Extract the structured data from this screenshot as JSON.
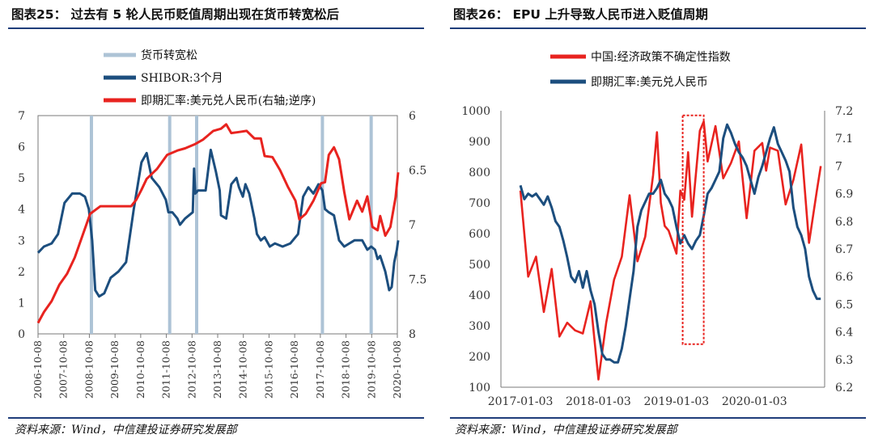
{
  "left": {
    "title": "图表25： 过去有 5 轮人民币贬值周期出现在货币转宽松后",
    "source": "资料来源：Wind，中信建投证券研究发展部",
    "legend": [
      "货币转宽松",
      "SHIBOR:3个月",
      "即期汇率:美元兑人民币(右轴;逆序)"
    ]
  },
  "right": {
    "title": "图表26： EPU 上升导致人民币进入贬值周期",
    "source": "资料来源：Wind，中信建投证券研究发展部",
    "legend": [
      "中国:经济政策不确定性指数",
      "即期汇率:美元兑人民币"
    ]
  },
  "colors": {
    "red": "#e8231f",
    "blue": "#1c4e7e",
    "band": "#adc3d6",
    "box": "#e8231f"
  },
  "chart_data": [
    {
      "type": "line",
      "title": "",
      "x_ticks": [
        "2006-10-08",
        "2007-10-08",
        "2008-10-08",
        "2009-10-08",
        "2010-10-08",
        "2011-10-08",
        "2012-10-08",
        "2013-10-08",
        "2014-10-08",
        "2015-10-08",
        "2016-10-08",
        "2017-10-08",
        "2018-10-08",
        "2019-10-08",
        "2020-10-08"
      ],
      "y_left": {
        "range": [
          0,
          7
        ],
        "ticks": [
          0,
          1,
          2,
          3,
          4,
          5,
          6,
          7
        ]
      },
      "y_right": {
        "range": [
          6,
          8
        ],
        "inverted": true,
        "ticks": [
          "6",
          "6.5",
          "7",
          "7.5",
          "8"
        ]
      },
      "easing_years": [
        2008.85,
        2011.9,
        2012.95,
        2017.85,
        2019.75
      ],
      "series": [
        {
          "name": "SHIBOR:3个月",
          "axis": "left",
          "x": [
            2006.77,
            2007.0,
            2007.3,
            2007.55,
            2007.8,
            2008.1,
            2008.4,
            2008.6,
            2008.75,
            2008.88,
            2009.0,
            2009.15,
            2009.35,
            2009.6,
            2009.9,
            2010.2,
            2010.5,
            2010.8,
            2011.0,
            2011.2,
            2011.5,
            2011.75,
            2011.85,
            2012.0,
            2012.2,
            2012.3,
            2012.5,
            2012.8,
            2012.85,
            2012.9,
            2013.0,
            2013.3,
            2013.45,
            2013.5,
            2013.7,
            2013.85,
            2013.9,
            2014.1,
            2014.3,
            2014.5,
            2014.6,
            2014.75,
            2014.85,
            2015.0,
            2015.2,
            2015.3,
            2015.45,
            2015.6,
            2015.8,
            2016.0,
            2016.3,
            2016.6,
            2016.9,
            2017.1,
            2017.3,
            2017.5,
            2017.7,
            2017.85,
            2017.95,
            2018.1,
            2018.3,
            2018.5,
            2018.7,
            2018.9,
            2019.1,
            2019.4,
            2019.6,
            2019.75,
            2019.9,
            2020.0,
            2020.1,
            2020.3,
            2020.45,
            2020.55,
            2020.65,
            2020.75,
            2020.8
          ],
          "values": [
            2.6,
            2.8,
            2.9,
            3.2,
            4.2,
            4.5,
            4.5,
            4.4,
            4.0,
            3.0,
            1.4,
            1.2,
            1.3,
            1.8,
            2.0,
            2.3,
            4.0,
            5.5,
            5.8,
            5.0,
            4.7,
            4.3,
            3.9,
            3.9,
            3.7,
            3.5,
            3.7,
            3.9,
            5.3,
            4.5,
            4.6,
            4.6,
            5.6,
            5.9,
            5.2,
            4.6,
            3.8,
            3.7,
            4.8,
            5.0,
            4.7,
            4.4,
            4.8,
            4.5,
            3.7,
            3.2,
            3.0,
            3.1,
            2.8,
            2.9,
            2.8,
            2.9,
            3.2,
            4.4,
            4.7,
            4.5,
            4.8,
            4.6,
            4.0,
            3.9,
            3.8,
            3.0,
            2.8,
            2.9,
            3.0,
            3.0,
            2.7,
            2.8,
            2.7,
            2.4,
            2.5,
            2.0,
            1.4,
            1.5,
            2.3,
            2.7,
            3.0
          ]
        },
        {
          "name": "即期汇率:美元兑人民币(右轴;逆序)",
          "axis": "right",
          "x": [
            2006.77,
            2007.0,
            2007.3,
            2007.6,
            2007.9,
            2008.2,
            2008.5,
            2008.8,
            2009.2,
            2009.6,
            2010.0,
            2010.4,
            2010.6,
            2010.8,
            2011.0,
            2011.4,
            2011.8,
            2012.2,
            2012.5,
            2012.9,
            2013.2,
            2013.6,
            2013.9,
            2014.1,
            2014.3,
            2014.6,
            2014.9,
            2015.2,
            2015.45,
            2015.6,
            2015.9,
            2016.2,
            2016.5,
            2016.8,
            2016.95,
            2017.2,
            2017.5,
            2017.8,
            2017.95,
            2018.1,
            2018.3,
            2018.5,
            2018.7,
            2018.9,
            2019.2,
            2019.4,
            2019.6,
            2019.8,
            2020.0,
            2020.1,
            2020.3,
            2020.5,
            2020.7,
            2020.8
          ],
          "values": [
            7.9,
            7.8,
            7.7,
            7.55,
            7.45,
            7.3,
            7.1,
            6.9,
            6.83,
            6.83,
            6.83,
            6.83,
            6.77,
            6.68,
            6.58,
            6.49,
            6.36,
            6.32,
            6.3,
            6.26,
            6.22,
            6.14,
            6.12,
            6.08,
            6.16,
            6.15,
            6.14,
            6.21,
            6.21,
            6.37,
            6.38,
            6.5,
            6.65,
            6.78,
            6.95,
            6.9,
            6.78,
            6.62,
            6.61,
            6.36,
            6.29,
            6.4,
            6.7,
            6.95,
            6.78,
            6.88,
            6.74,
            7.02,
            7.05,
            6.92,
            7.1,
            7.02,
            6.75,
            6.52
          ]
        }
      ]
    },
    {
      "type": "line",
      "title": "",
      "x_ticks": [
        "2017-01-03",
        "2018-01-03",
        "2019-01-03",
        "2020-01-03"
      ],
      "y_left": {
        "range": [
          100,
          1000
        ],
        "ticks": [
          100,
          200,
          300,
          400,
          500,
          600,
          700,
          800,
          900,
          1000
        ]
      },
      "y_right": {
        "range": [
          6.2,
          7.2
        ],
        "ticks": [
          "6.2",
          "6.3",
          "6.4",
          "6.5",
          "6.6",
          "6.7",
          "6.8",
          "6.9",
          "7",
          "7.1",
          "7.2"
        ]
      },
      "highlight": {
        "x_range": [
          2019.08,
          2019.35
        ],
        "y_range": [
          240,
          985
        ]
      },
      "series": [
        {
          "name": "中国:经济政策不确定性指数",
          "axis": "left",
          "x": [
            2017.0,
            2017.1,
            2017.2,
            2017.3,
            2017.4,
            2017.5,
            2017.6,
            2017.7,
            2017.8,
            2017.9,
            2018.0,
            2018.1,
            2018.2,
            2018.3,
            2018.4,
            2018.5,
            2018.6,
            2018.7,
            2018.75,
            2018.8,
            2018.85,
            2018.9,
            2019.0,
            2019.05,
            2019.1,
            2019.15,
            2019.2,
            2019.3,
            2019.35,
            2019.4,
            2019.5,
            2019.6,
            2019.7,
            2019.8,
            2019.9,
            2020.0,
            2020.1,
            2020.15,
            2020.2,
            2020.3,
            2020.4,
            2020.5,
            2020.6,
            2020.7,
            2020.8,
            2020.85
          ],
          "values": [
            740,
            460,
            525,
            345,
            485,
            265,
            310,
            285,
            275,
            380,
            125,
            310,
            450,
            525,
            725,
            510,
            590,
            790,
            930,
            700,
            625,
            610,
            535,
            740,
            710,
            865,
            655,
            935,
            965,
            835,
            950,
            780,
            830,
            900,
            650,
            870,
            895,
            805,
            880,
            870,
            695,
            775,
            890,
            570,
            740,
            820
          ]
        },
        {
          "name": "即期汇率:美元兑人民币",
          "axis": "right",
          "x": [
            2017.0,
            2017.05,
            2017.1,
            2017.15,
            2017.2,
            2017.25,
            2017.3,
            2017.35,
            2017.4,
            2017.45,
            2017.5,
            2017.55,
            2017.6,
            2017.65,
            2017.7,
            2017.75,
            2017.8,
            2017.85,
            2017.9,
            2017.95,
            2018.0,
            2018.05,
            2018.1,
            2018.15,
            2018.2,
            2018.25,
            2018.3,
            2018.35,
            2018.4,
            2018.45,
            2018.5,
            2018.55,
            2018.6,
            2018.65,
            2018.7,
            2018.75,
            2018.8,
            2018.85,
            2018.9,
            2018.95,
            2019.0,
            2019.05,
            2019.1,
            2019.15,
            2019.2,
            2019.25,
            2019.3,
            2019.35,
            2019.4,
            2019.45,
            2019.5,
            2019.55,
            2019.6,
            2019.65,
            2019.7,
            2019.75,
            2019.8,
            2019.85,
            2019.9,
            2019.95,
            2020.0,
            2020.05,
            2020.1,
            2020.15,
            2020.2,
            2020.25,
            2020.3,
            2020.35,
            2020.4,
            2020.45,
            2020.5,
            2020.55,
            2020.6,
            2020.65,
            2020.7,
            2020.75,
            2020.8,
            2020.85
          ],
          "values": [
            6.93,
            6.88,
            6.9,
            6.89,
            6.9,
            6.88,
            6.86,
            6.89,
            6.85,
            6.8,
            6.78,
            6.73,
            6.67,
            6.6,
            6.58,
            6.62,
            6.56,
            6.62,
            6.55,
            6.5,
            6.4,
            6.32,
            6.3,
            6.3,
            6.29,
            6.29,
            6.34,
            6.42,
            6.52,
            6.62,
            6.78,
            6.84,
            6.87,
            6.9,
            6.9,
            6.92,
            6.95,
            6.9,
            6.88,
            6.85,
            6.78,
            6.72,
            6.75,
            6.72,
            6.7,
            6.73,
            6.75,
            6.82,
            6.9,
            6.92,
            6.95,
            6.98,
            7.1,
            7.15,
            7.12,
            7.08,
            7.05,
            7.03,
            7.0,
            6.95,
            6.9,
            6.96,
            7.0,
            7.05,
            7.1,
            7.14,
            7.08,
            7.05,
            7.02,
            6.98,
            6.85,
            6.78,
            6.75,
            6.7,
            6.6,
            6.55,
            6.52,
            6.52
          ]
        }
      ]
    }
  ]
}
